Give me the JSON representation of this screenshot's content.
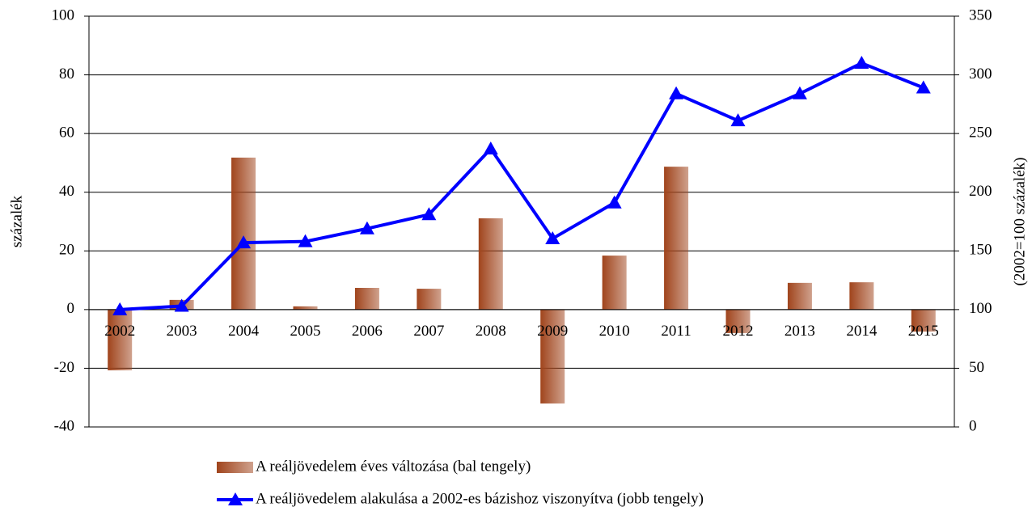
{
  "chart_data": {
    "type": "bar-line",
    "categories": [
      "2002",
      "2003",
      "2004",
      "2005",
      "2006",
      "2007",
      "2008",
      "2009",
      "2010",
      "2011",
      "2012",
      "2013",
      "2014",
      "2015"
    ],
    "series": [
      {
        "name": "A reáljövedelem éves változása (bal tengely)",
        "type": "bar",
        "color": "#a0441c",
        "values": [
          -20.7,
          3.3,
          51.8,
          1.1,
          7.4,
          7.1,
          31.1,
          -32,
          18.4,
          48.7,
          -8,
          9.1,
          9.3,
          -7.5
        ]
      },
      {
        "name": "A reáljövedelem alakulása a 2002-es bázishoz viszonyítva (jobb tengely)",
        "type": "line",
        "axis": "y2",
        "color": "#0000ff",
        "values": [
          100,
          103,
          157,
          158,
          169,
          181,
          237,
          160.5,
          191,
          284,
          261,
          284,
          310,
          289
        ]
      }
    ],
    "ylabel": "százalék",
    "y2label": "(2002=100 százalék)",
    "ylim": [
      -40,
      100
    ],
    "yticks": [
      -40,
      -20,
      0,
      20,
      40,
      60,
      80,
      100
    ],
    "y2lim": [
      0,
      350
    ],
    "y2ticks": [
      0,
      50,
      100,
      150,
      200,
      250,
      300,
      350
    ],
    "grid": true,
    "legend": "bottom"
  }
}
